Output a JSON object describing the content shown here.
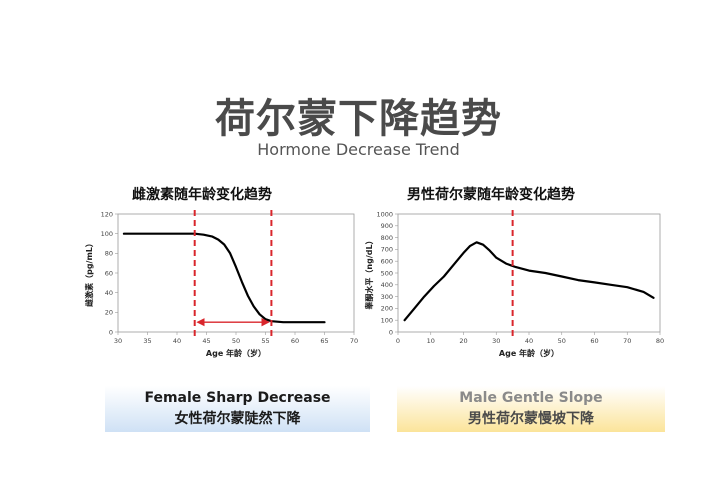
{
  "page": {
    "title": "荷尔蒙下降趋势",
    "subtitle": "Hormone Decrease Trend"
  },
  "captions": {
    "female_en": "Female Sharp Decrease",
    "female_zh": "女性荷尔蒙陡然下降",
    "male_en": "Male Gentle Slope",
    "male_zh": "男性荷尔蒙慢坡下降"
  },
  "colors": {
    "line": "#000000",
    "marker": "#d9262c",
    "female_caption_bg": "#cfe1f5",
    "male_caption_bg": "#fbe49a"
  },
  "chart_data": [
    {
      "type": "line",
      "title": "雌激素随年龄变化趋势",
      "xlabel": "Age 年龄（岁）",
      "ylabel": "雌激素（pg/mL）",
      "xlim": [
        30,
        70
      ],
      "ylim": [
        0,
        120
      ],
      "xticks": [
        "30",
        "35",
        "40",
        "45",
        "50",
        "55",
        "60",
        "65",
        "70"
      ],
      "yticks": [
        "0",
        "20",
        "40",
        "60",
        "80",
        "100",
        "120"
      ],
      "series": [
        {
          "x": [
            31,
            35,
            40,
            43,
            44.5,
            46,
            47,
            48,
            49,
            50,
            51,
            52,
            53,
            54,
            55,
            56,
            57,
            58,
            60,
            62,
            65
          ],
          "y": [
            100,
            100,
            100,
            100,
            99,
            97,
            94,
            89,
            80,
            66,
            51,
            37,
            26,
            18,
            13,
            11,
            10.5,
            10,
            10,
            10,
            10
          ]
        }
      ],
      "vlines": [
        43,
        56
      ],
      "arrow": {
        "from": 43,
        "to": 56,
        "y": 10
      }
    },
    {
      "type": "line",
      "title": "男性荷尔蒙随年龄变化趋势",
      "xlabel": "Age 年龄（岁）",
      "ylabel": "睾酮水平（ng/dL）",
      "xlim": [
        0,
        80
      ],
      "ylim": [
        0,
        1000
      ],
      "xticks": [
        "0",
        "10",
        "20",
        "30",
        "40",
        "50",
        "60",
        "70",
        "80"
      ],
      "yticks": [
        "0",
        "100",
        "200",
        "300",
        "400",
        "500",
        "600",
        "700",
        "800",
        "900",
        "1000"
      ],
      "series": [
        {
          "x": [
            2,
            5,
            8,
            11,
            14,
            17,
            20,
            22,
            24,
            26,
            28,
            30,
            33,
            36,
            40,
            45,
            50,
            55,
            60,
            65,
            70,
            75,
            78
          ],
          "y": [
            100,
            200,
            300,
            390,
            470,
            570,
            670,
            730,
            760,
            740,
            690,
            630,
            580,
            550,
            520,
            500,
            470,
            440,
            420,
            400,
            380,
            340,
            290
          ]
        }
      ],
      "vlines": [
        35
      ]
    }
  ]
}
